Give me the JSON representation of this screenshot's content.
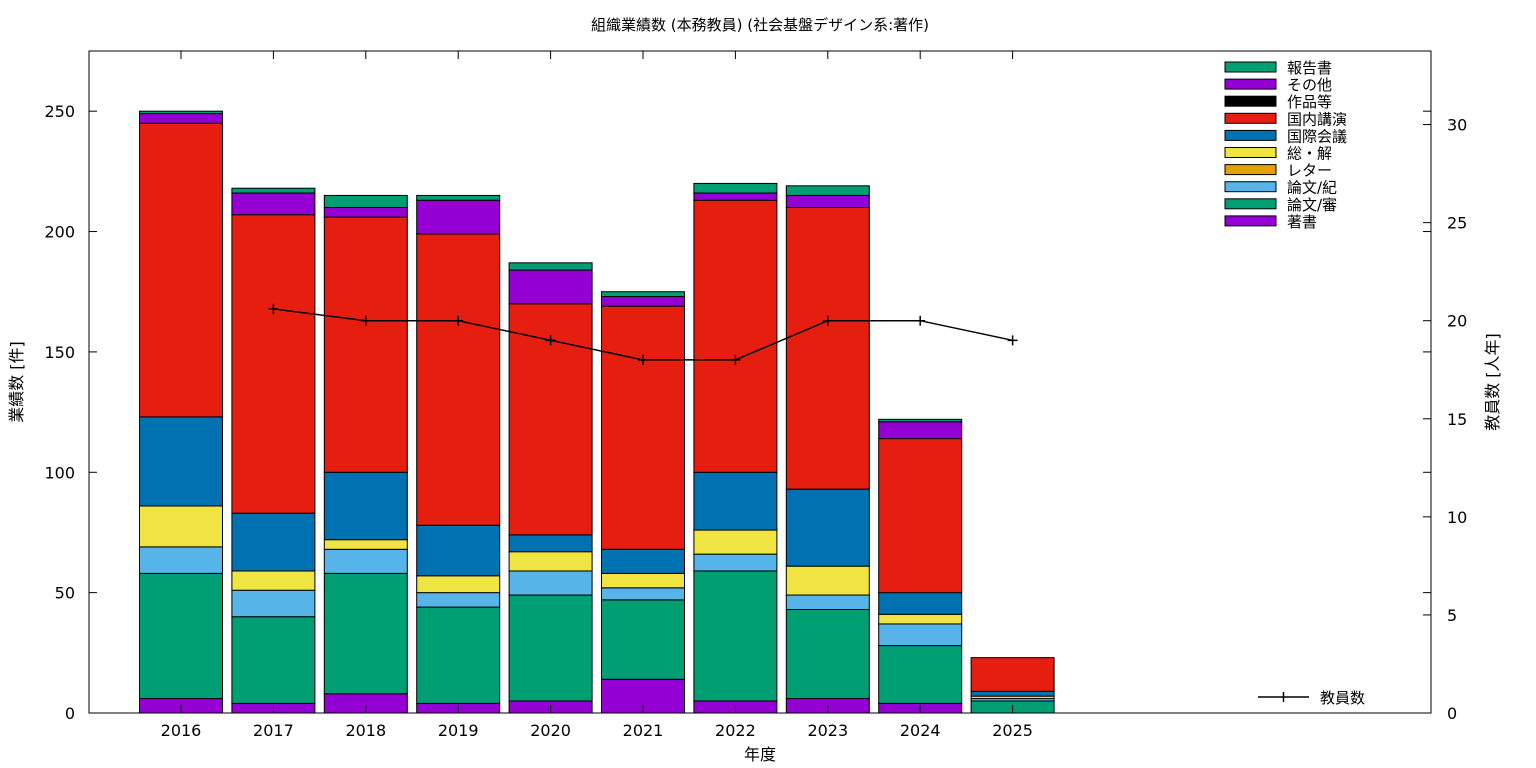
{
  "chart_data": {
    "type": "bar",
    "stacked": true,
    "title": "組織業績数 (本務教員) (社会基盤デザイン系:著作)",
    "xlabel": "年度",
    "ylabel": "業績数 [件]",
    "y2label": "教員数 [人年]",
    "categories": [
      "2016",
      "2017",
      "2018",
      "2019",
      "2020",
      "2021",
      "2022",
      "2023",
      "2024",
      "2025"
    ],
    "ylim": [
      0,
      275
    ],
    "yticks": [
      0,
      50,
      100,
      150,
      200,
      250
    ],
    "y2lim": [
      0,
      33.75
    ],
    "y2ticks": [
      0,
      5,
      10,
      15,
      20,
      25,
      30
    ],
    "legend_position": "top-right",
    "series": [
      {
        "name": "著書",
        "color": "#9400d3",
        "values": [
          6,
          4,
          8,
          4,
          5,
          14,
          5,
          6,
          4,
          0
        ]
      },
      {
        "name": "論文/審",
        "color": "#009e73",
        "values": [
          52,
          36,
          50,
          40,
          44,
          33,
          54,
          37,
          24,
          5
        ]
      },
      {
        "name": "論文/紀",
        "color": "#56b4e9",
        "values": [
          11,
          11,
          10,
          6,
          10,
          5,
          7,
          6,
          9,
          1
        ]
      },
      {
        "name": "レター",
        "color": "#e69f00",
        "values": [
          0,
          0,
          0,
          0,
          0,
          0,
          0,
          0,
          0,
          0
        ]
      },
      {
        "name": "総・解",
        "color": "#f0e442",
        "values": [
          17,
          8,
          4,
          7,
          8,
          6,
          10,
          12,
          4,
          1
        ]
      },
      {
        "name": "国際会議",
        "color": "#0072b2",
        "values": [
          37,
          24,
          28,
          21,
          7,
          10,
          24,
          32,
          9,
          2
        ]
      },
      {
        "name": "国内講演",
        "color": "#e51e10",
        "values": [
          122,
          124,
          106,
          121,
          96,
          101,
          113,
          117,
          64,
          14
        ]
      },
      {
        "name": "作品等",
        "color": "#000000",
        "values": [
          0,
          0,
          0,
          0,
          0,
          0,
          0,
          0,
          0,
          0
        ]
      },
      {
        "name": "その他",
        "color": "#9400d3",
        "values": [
          4,
          9,
          4,
          14,
          14,
          4,
          3,
          5,
          7,
          0
        ]
      },
      {
        "name": "報告書",
        "color": "#009e73",
        "values": [
          1,
          2,
          5,
          2,
          3,
          2,
          4,
          4,
          1,
          0
        ]
      }
    ],
    "line_series": {
      "name": "教員数",
      "color": "#000000",
      "axis": "y2",
      "x": [
        "2017",
        "2018",
        "2019",
        "2020",
        "2021",
        "2022",
        "2023",
        "2024",
        "2025"
      ],
      "values": [
        20.6,
        20,
        20,
        19,
        18,
        18,
        20,
        20,
        19
      ]
    }
  }
}
